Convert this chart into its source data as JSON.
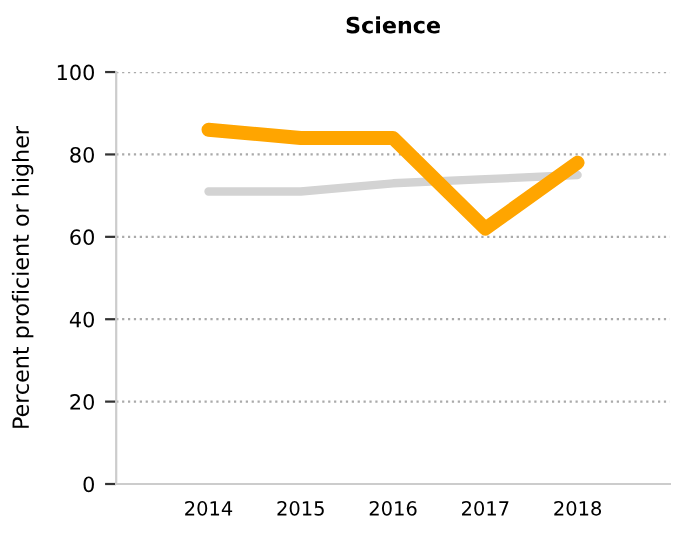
{
  "chart_data": {
    "type": "line",
    "title": "Science",
    "ylabel": "Percent proficient or higher",
    "categories": [
      "2014",
      "2015",
      "2016",
      "2017",
      "2018"
    ],
    "series": [
      {
        "color": "#d3d3d3",
        "values": [
          71,
          71,
          73,
          74,
          75
        ]
      },
      {
        "color": "#ffa500",
        "values": [
          86,
          84,
          84,
          62,
          78
        ]
      }
    ],
    "ylim": [
      0,
      100
    ],
    "yticks": [
      0,
      20,
      40,
      60,
      80,
      100
    ],
    "grid": "y",
    "legend": false,
    "marker": "none",
    "line_style": "solid"
  }
}
